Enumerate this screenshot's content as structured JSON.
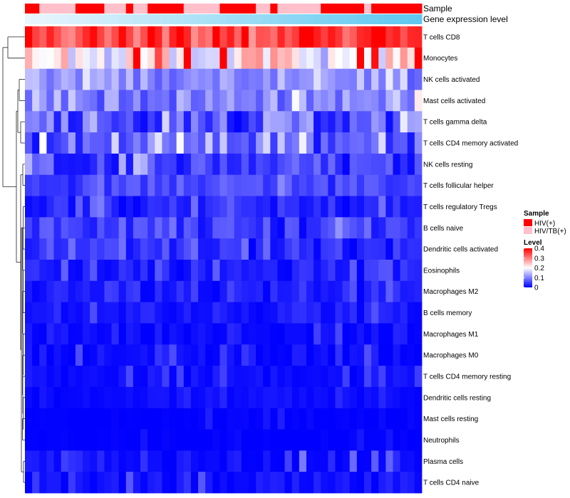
{
  "chart_data": {
    "type": "heatmap",
    "annotation_rows": [
      {
        "name": "Sample"
      },
      {
        "name": "Gene expression level"
      }
    ],
    "rows": [
      "T cells CD8",
      "Monocytes",
      "NK cells activated",
      "Mast cells activated",
      "T cells gamma delta",
      "T cells CD4 memory activated",
      "NK cells resting",
      "T cells follicular helper",
      "T cells regulatory  Tregs",
      "B cells naive",
      "Dendritic cells activated",
      "Eosinophils",
      "Macrophages M2",
      "B cells memory",
      "Macrophages M1",
      "Macrophages M0",
      "T cells CD4 memory resting",
      "Dendritic cells resting",
      "Mast cells resting",
      "Neutrophils",
      "Plasma cells",
      "T cells CD4 naive"
    ],
    "sample_groups": [
      "HIV(+)",
      "HIV(+)",
      "HIV/TB(+)",
      "HIV/TB(+)",
      "HIV/TB(+)",
      "HIV/TB(+)",
      "HIV/TB(+)",
      "HIV(+)",
      "HIV(+)",
      "HIV(+)",
      "HIV(+)",
      "HIV/TB(+)",
      "HIV/TB(+)",
      "HIV/TB(+)",
      "HIV(+)",
      "HIV/TB(+)",
      "HIV/TB(+)",
      "HIV(+)",
      "HIV(+)",
      "HIV(+)",
      "HIV(+)",
      "HIV(+)",
      "HIV/TB(+)",
      "HIV/TB(+)",
      "HIV/TB(+)",
      "HIV/TB(+)",
      "HIV/TB(+)",
      "HIV(+)",
      "HIV(+)",
      "HIV(+)",
      "HIV(+)",
      "HIV(+)",
      "HIV/TB(+)",
      "HIV/TB(+)",
      "HIV(+)",
      "HIV/TB(+)",
      "HIV/TB(+)",
      "HIV/TB(+)",
      "HIV/TB(+)",
      "HIV/TB(+)",
      "HIV/TB(+)",
      "HIV(+)",
      "HIV(+)",
      "HIV(+)",
      "HIV(+)",
      "HIV(+)",
      "HIV(+)",
      "HIV/TB(+)",
      "HIV(+)",
      "HIV(+)",
      "HIV(+)",
      "HIV(+)",
      "HIV(+)",
      "HIV(+)",
      "HIV(+)"
    ],
    "expression_gradient": [
      "#eaf6fd",
      "#5ec8f0"
    ],
    "legend": {
      "sample": {
        "title": "Sample",
        "entries": [
          {
            "label": "HIV(+)",
            "color": "#ff0000"
          },
          {
            "label": "HIV/TB(+)",
            "color": "#ffc0cb"
          }
        ]
      },
      "level": {
        "title": "Level",
        "ticks": [
          0,
          0.1,
          0.2,
          0.3,
          0.4
        ],
        "min": 0,
        "max": 0.4,
        "colors": [
          "#0000ff",
          "#ffffff",
          "#ff0000"
        ]
      }
    },
    "row_profiles": {
      "T cells CD8": [
        0.35,
        0.28,
        0.4
      ],
      "Monocytes": [
        0.22,
        0.12,
        0.4
      ],
      "NK cells activated": [
        0.12,
        0.06,
        0.2
      ],
      "Mast cells activated": [
        0.11,
        0.05,
        0.22
      ],
      "T cells gamma delta": [
        0.08,
        0.0,
        0.25
      ],
      "T cells CD4 memory activated": [
        0.08,
        0.01,
        0.2
      ],
      "NK cells resting": [
        0.05,
        0.0,
        0.17
      ],
      "T cells follicular helper": [
        0.06,
        0.02,
        0.12
      ],
      "T cells regulatory  Tregs": [
        0.03,
        0.0,
        0.1
      ],
      "B cells naive": [
        0.05,
        0.0,
        0.12
      ],
      "Dendritic cells activated": [
        0.04,
        0.0,
        0.1
      ],
      "Eosinophils": [
        0.03,
        0.0,
        0.08
      ],
      "Macrophages M2": [
        0.03,
        0.0,
        0.09
      ],
      "B cells memory": [
        0.02,
        0.0,
        0.07
      ],
      "Macrophages M1": [
        0.01,
        0.0,
        0.06
      ],
      "Macrophages M0": [
        0.01,
        0.0,
        0.07
      ],
      "T cells CD4 memory resting": [
        0.01,
        0.0,
        0.06
      ],
      "Dendritic cells resting": [
        0.01,
        0.0,
        0.04
      ],
      "Mast cells resting": [
        0.0,
        0.0,
        0.03
      ],
      "Neutrophils": [
        0.0,
        0.0,
        0.02
      ],
      "Plasma cells": [
        0.01,
        0.0,
        0.1
      ],
      "T cells CD4 naive": [
        0.01,
        0.0,
        0.07
      ]
    },
    "hot_cells": {
      "T cells CD8": [
        0,
        17,
        21,
        26,
        30,
        38,
        39,
        48,
        49
      ],
      "Monocytes": [
        15,
        22,
        27,
        46,
        54
      ]
    }
  }
}
